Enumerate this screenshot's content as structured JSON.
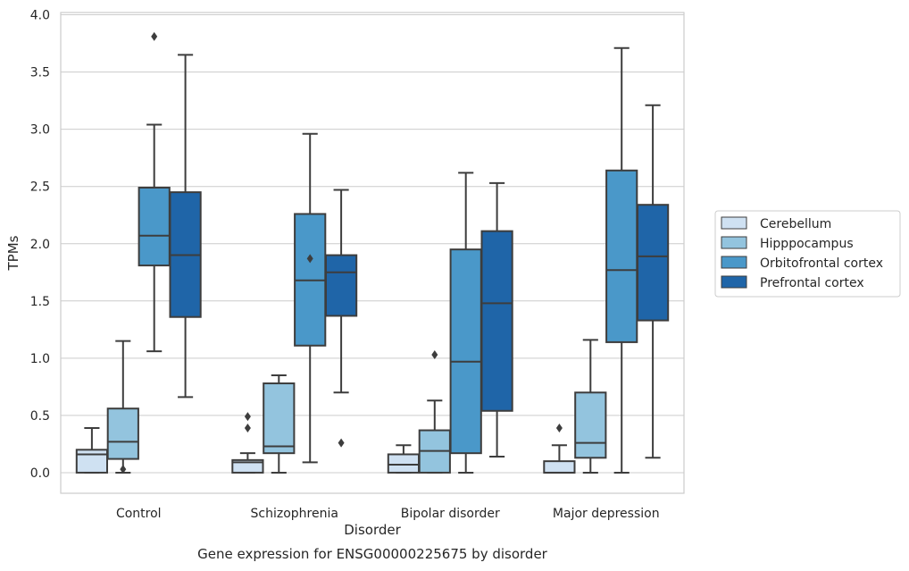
{
  "chart_data": {
    "type": "box",
    "title": "",
    "xlabel": "Disorder",
    "ylabel": "TPMs",
    "caption": "Gene expression for ENSG00000225675 by disorder",
    "ylim": [
      -0.18,
      4.02
    ],
    "yticks": [
      "0.0",
      "0.5",
      "1.0",
      "1.5",
      "2.0",
      "2.5",
      "3.0",
      "3.5",
      "4.0"
    ],
    "grid": "horizontal",
    "legend_position": "right",
    "categories": [
      "Control",
      "Schizophrenia",
      "Bipolar disorder",
      "Major depression"
    ],
    "series": [
      {
        "name": "Cerebellum",
        "color": "#cfe1f2",
        "boxes": [
          {
            "whislo": 0.0,
            "q1": 0.0,
            "med": 0.16,
            "q3": 0.2,
            "whishi": 0.39,
            "fliers": []
          },
          {
            "whislo": 0.0,
            "q1": 0.0,
            "med": 0.09,
            "q3": 0.11,
            "whishi": 0.17,
            "fliers": [
              0.49,
              0.39
            ]
          },
          {
            "whislo": 0.0,
            "q1": 0.0,
            "med": 0.07,
            "q3": 0.16,
            "whishi": 0.24,
            "fliers": []
          },
          {
            "whislo": 0.0,
            "q1": 0.0,
            "med": 0.0,
            "q3": 0.1,
            "whishi": 0.24,
            "fliers": [
              0.39
            ]
          }
        ]
      },
      {
        "name": "Hipppocampus",
        "color": "#93c4de",
        "boxes": [
          {
            "whislo": 0.0,
            "q1": 0.12,
            "med": 0.27,
            "q3": 0.56,
            "whishi": 1.15,
            "fliers": [
              0.03
            ]
          },
          {
            "whislo": 0.0,
            "q1": 0.17,
            "med": 0.23,
            "q3": 0.78,
            "whishi": 0.85,
            "fliers": []
          },
          {
            "whislo": 0.0,
            "q1": 0.0,
            "med": 0.19,
            "q3": 0.37,
            "whishi": 0.63,
            "fliers": [
              1.03
            ]
          },
          {
            "whislo": 0.0,
            "q1": 0.13,
            "med": 0.26,
            "q3": 0.7,
            "whishi": 1.16,
            "fliers": []
          }
        ]
      },
      {
        "name": "Orbitofrontal cortex",
        "color": "#4a98c9",
        "boxes": [
          {
            "whislo": 1.06,
            "q1": 1.81,
            "med": 2.07,
            "q3": 2.49,
            "whishi": 3.04,
            "fliers": [
              3.81
            ]
          },
          {
            "whislo": 0.09,
            "q1": 1.11,
            "med": 1.68,
            "q3": 2.26,
            "whishi": 2.96,
            "fliers": [
              1.87
            ]
          },
          {
            "whislo": 0.0,
            "q1": 0.17,
            "med": 0.97,
            "q3": 1.95,
            "whishi": 2.62,
            "fliers": []
          },
          {
            "whislo": 0.0,
            "q1": 1.14,
            "med": 1.77,
            "q3": 2.64,
            "whishi": 3.71,
            "fliers": []
          }
        ]
      },
      {
        "name": "Prefrontal cortex",
        "color": "#1f65a8",
        "boxes": [
          {
            "whislo": 0.66,
            "q1": 1.36,
            "med": 1.9,
            "q3": 2.45,
            "whishi": 3.65,
            "fliers": []
          },
          {
            "whislo": 0.7,
            "q1": 1.37,
            "med": 1.75,
            "q3": 1.9,
            "whishi": 2.47,
            "fliers": [
              0.26
            ]
          },
          {
            "whislo": 0.14,
            "q1": 0.54,
            "med": 1.48,
            "q3": 2.11,
            "whishi": 2.53,
            "fliers": []
          },
          {
            "whislo": 0.13,
            "q1": 1.33,
            "med": 1.89,
            "q3": 2.34,
            "whishi": 3.21,
            "fliers": []
          }
        ]
      }
    ]
  }
}
